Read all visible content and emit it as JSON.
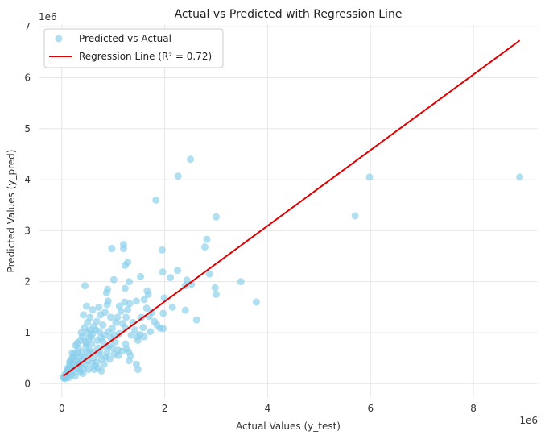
{
  "chart_data": {
    "type": "scatter",
    "title": "Actual vs Predicted with Regression Line",
    "xlabel": "Actual Values (y_test)",
    "ylabel": "Predicted Values (y_pred)",
    "x_offset_label": "1e6",
    "y_offset_label": "1e6",
    "xlim": [
      -0.45,
      9.25
    ],
    "ylim": [
      -0.28,
      7.05
    ],
    "xticks": [
      0,
      2,
      4,
      6,
      8
    ],
    "yticks": [
      0,
      1,
      2,
      3,
      4,
      5,
      6,
      7
    ],
    "xtick_labels": [
      "0",
      "2",
      "4",
      "6",
      "8"
    ],
    "ytick_labels": [
      "0",
      "1",
      "2",
      "3",
      "4",
      "5",
      "6",
      "7"
    ],
    "grid": true,
    "legend_position": "top-left",
    "colors": {
      "points": "#87ceeb",
      "line": "#e00000",
      "grid": "#e6e6e6"
    },
    "series": [
      {
        "name": "Predicted vs Actual",
        "kind": "scatter",
        "points": [
          [
            8.9,
            4.05
          ],
          [
            5.98,
            4.05
          ],
          [
            5.7,
            3.29
          ],
          [
            2.5,
            4.4
          ],
          [
            2.26,
            4.07
          ],
          [
            1.83,
            3.6
          ],
          [
            3.0,
            3.27
          ],
          [
            2.82,
            2.83
          ],
          [
            2.78,
            2.68
          ],
          [
            1.95,
            2.62
          ],
          [
            1.2,
            2.73
          ],
          [
            1.2,
            2.65
          ],
          [
            0.97,
            2.65
          ],
          [
            1.28,
            2.38
          ],
          [
            1.23,
            2.32
          ],
          [
            2.25,
            2.22
          ],
          [
            1.96,
            2.19
          ],
          [
            2.43,
            2.03
          ],
          [
            2.87,
            2.15
          ],
          [
            2.52,
            1.95
          ],
          [
            2.4,
            1.92
          ],
          [
            2.11,
            2.08
          ],
          [
            1.53,
            2.1
          ],
          [
            2.98,
            1.88
          ],
          [
            3.0,
            1.75
          ],
          [
            3.48,
            2.0
          ],
          [
            3.78,
            1.6
          ],
          [
            1.66,
            1.82
          ],
          [
            1.68,
            1.75
          ],
          [
            1.31,
            2.0
          ],
          [
            1.01,
            2.04
          ],
          [
            0.89,
            1.85
          ],
          [
            0.87,
            1.78
          ],
          [
            0.45,
            1.92
          ],
          [
            0.48,
            1.52
          ],
          [
            2.15,
            1.5
          ],
          [
            2.4,
            1.44
          ],
          [
            2.62,
            1.25
          ],
          [
            1.99,
            1.68
          ],
          [
            1.97,
            1.38
          ],
          [
            1.91,
            1.09
          ],
          [
            1.97,
            1.08
          ],
          [
            1.23,
            1.87
          ],
          [
            1.22,
            1.6
          ],
          [
            1.32,
            1.57
          ],
          [
            1.45,
            1.62
          ],
          [
            1.6,
            1.65
          ],
          [
            1.58,
            1.1
          ],
          [
            1.52,
            0.96
          ],
          [
            1.47,
            0.92
          ],
          [
            1.48,
            0.85
          ],
          [
            1.23,
            1.1
          ],
          [
            1.24,
            0.78
          ],
          [
            1.26,
            0.68
          ],
          [
            1.3,
            0.62
          ],
          [
            1.34,
            0.55
          ],
          [
            1.31,
            0.45
          ],
          [
            1.45,
            0.38
          ],
          [
            1.48,
            0.28
          ],
          [
            1.17,
            0.64
          ],
          [
            1.09,
            0.66
          ],
          [
            1.04,
            0.82
          ],
          [
            0.95,
            0.9
          ],
          [
            0.92,
            0.75
          ],
          [
            0.88,
            0.6
          ],
          [
            0.85,
            0.52
          ],
          [
            0.82,
            0.38
          ],
          [
            0.78,
            0.48
          ],
          [
            0.72,
            0.58
          ],
          [
            0.7,
            0.7
          ],
          [
            0.69,
            0.85
          ],
          [
            0.68,
            0.42
          ],
          [
            0.65,
            0.35
          ],
          [
            0.62,
            0.5
          ],
          [
            0.6,
            0.62
          ],
          [
            0.58,
            0.78
          ],
          [
            0.57,
            0.92
          ],
          [
            0.55,
            1.05
          ],
          [
            0.52,
            0.28
          ],
          [
            0.5,
            0.45
          ],
          [
            0.49,
            0.6
          ],
          [
            0.47,
            0.72
          ],
          [
            0.46,
            0.82
          ],
          [
            0.44,
            1.1
          ],
          [
            0.42,
            1.35
          ],
          [
            0.42,
            0.3
          ],
          [
            0.4,
            0.48
          ],
          [
            0.39,
            0.62
          ],
          [
            0.38,
            1.0
          ],
          [
            0.36,
            0.22
          ],
          [
            0.35,
            0.38
          ],
          [
            0.33,
            0.52
          ],
          [
            0.32,
            0.7
          ],
          [
            0.3,
            0.8
          ],
          [
            0.29,
            0.3
          ],
          [
            0.28,
            0.45
          ],
          [
            0.26,
            0.15
          ],
          [
            0.25,
            0.6
          ],
          [
            0.24,
            0.35
          ],
          [
            0.23,
            0.52
          ],
          [
            0.22,
            0.25
          ],
          [
            0.21,
            0.4
          ],
          [
            0.2,
            0.6
          ],
          [
            0.19,
            0.18
          ],
          [
            0.18,
            0.3
          ],
          [
            0.17,
            0.45
          ],
          [
            0.16,
            0.22
          ],
          [
            0.15,
            0.35
          ],
          [
            0.14,
            0.12
          ],
          [
            0.13,
            0.28
          ],
          [
            0.12,
            0.2
          ],
          [
            0.11,
            0.3
          ],
          [
            0.1,
            0.15
          ],
          [
            0.09,
            0.22
          ],
          [
            0.08,
            0.12
          ],
          [
            0.07,
            0.18
          ],
          [
            0.06,
            0.1
          ],
          [
            0.05,
            0.14
          ],
          [
            0.04,
            0.11
          ],
          [
            0.03,
            0.13
          ],
          [
            0.95,
            1.3
          ],
          [
            0.88,
            1.55
          ],
          [
            1.08,
            1.3
          ],
          [
            1.15,
            1.42
          ],
          [
            1.05,
            1.2
          ],
          [
            0.98,
            1.08
          ],
          [
            0.8,
            1.15
          ],
          [
            0.75,
            1.35
          ],
          [
            0.68,
            1.22
          ],
          [
            0.62,
            1.12
          ],
          [
            0.55,
            1.3
          ],
          [
            0.5,
            1.2
          ],
          [
            1.38,
            1.2
          ],
          [
            1.55,
            1.3
          ],
          [
            1.7,
            1.32
          ],
          [
            1.8,
            1.22
          ],
          [
            1.75,
            1.4
          ],
          [
            1.65,
            1.48
          ],
          [
            1.12,
            0.98
          ],
          [
            1.18,
            1.18
          ],
          [
            1.02,
            0.95
          ],
          [
            0.9,
            1.02
          ],
          [
            0.83,
            0.95
          ],
          [
            0.76,
            0.9
          ],
          [
            0.6,
            0.98
          ],
          [
            0.66,
            1.05
          ],
          [
            0.73,
            1.02
          ],
          [
            0.8,
            0.82
          ],
          [
            0.86,
            0.72
          ],
          [
            0.98,
            0.7
          ],
          [
            1.02,
            0.58
          ],
          [
            1.1,
            0.55
          ],
          [
            0.93,
            0.48
          ],
          [
            0.74,
            0.62
          ],
          [
            0.54,
            0.65
          ],
          [
            0.44,
            0.52
          ],
          [
            0.36,
            0.85
          ],
          [
            0.31,
            0.6
          ],
          [
            0.27,
            0.75
          ],
          [
            0.52,
            0.88
          ],
          [
            0.58,
            0.4
          ],
          [
            0.63,
            0.28
          ],
          [
            0.71,
            0.3
          ],
          [
            0.77,
            0.25
          ],
          [
            0.45,
            0.38
          ],
          [
            0.41,
            0.2
          ],
          [
            0.34,
            0.28
          ],
          [
            1.35,
            0.95
          ],
          [
            1.42,
            1.05
          ],
          [
            1.6,
            0.92
          ],
          [
            1.72,
            1.02
          ],
          [
            1.85,
            1.15
          ],
          [
            1.25,
            1.3
          ],
          [
            1.12,
            1.52
          ],
          [
            1.28,
            1.45
          ],
          [
            0.9,
            1.62
          ],
          [
            0.84,
            1.4
          ],
          [
            0.6,
            1.45
          ],
          [
            0.72,
            1.5
          ],
          [
            0.5,
            1.0
          ],
          [
            0.4,
            0.92
          ],
          [
            0.48,
            0.78
          ],
          [
            0.33,
            0.4
          ],
          [
            0.2,
            0.5
          ],
          [
            0.15,
            0.42
          ],
          [
            0.1,
            0.25
          ]
        ]
      },
      {
        "name": "Regression Line (R² = 0.72)",
        "kind": "line",
        "points": [
          [
            0.03,
            0.15
          ],
          [
            8.9,
            6.73
          ]
        ]
      }
    ]
  }
}
